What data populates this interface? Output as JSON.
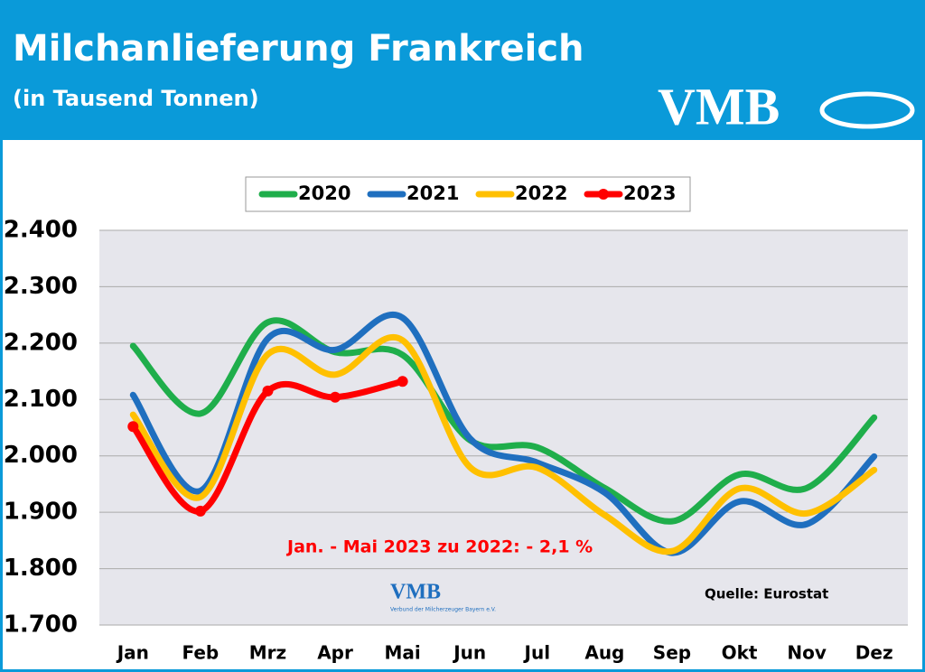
{
  "header": {
    "title": "Milchanlieferung Frankreich",
    "subtitle": "(in Tausend Tonnen)",
    "logo": "VMB"
  },
  "chart_data": {
    "type": "line",
    "categories": [
      "Jan",
      "Feb",
      "Mrz",
      "Apr",
      "Mai",
      "Jun",
      "Jul",
      "Aug",
      "Sep",
      "Okt",
      "Nov",
      "Dez"
    ],
    "series": [
      {
        "name": "2020",
        "color": "#1fae4b",
        "values": [
          2195,
          2075,
          2237,
          2184,
          2179,
          2028,
          2015,
          1943,
          1884,
          1967,
          1943,
          2068
        ]
      },
      {
        "name": "2021",
        "color": "#1f6fbf",
        "values": [
          2108,
          1938,
          2208,
          2188,
          2245,
          2031,
          1988,
          1935,
          1828,
          1919,
          1879,
          1999
        ]
      },
      {
        "name": "2022",
        "color": "#ffc000",
        "values": [
          2073,
          1927,
          2180,
          2144,
          2205,
          1980,
          1979,
          1895,
          1831,
          1942,
          1898,
          1975
        ]
      },
      {
        "name": "2023",
        "color": "#ff0000",
        "markers": true,
        "values": [
          2052,
          1902,
          2115,
          2104,
          2132,
          null,
          null,
          null,
          null,
          null,
          null,
          null
        ]
      }
    ],
    "ylim": [
      1700,
      2400
    ],
    "yticks": [
      {
        "value": 1700,
        "label": "1.700"
      },
      {
        "value": 1800,
        "label": "1.800"
      },
      {
        "value": 1900,
        "label": "1.900"
      },
      {
        "value": 2000,
        "label": "2.000"
      },
      {
        "value": 2100,
        "label": "2.100"
      },
      {
        "value": 2200,
        "label": "2.200"
      },
      {
        "value": 2300,
        "label": "2.300"
      },
      {
        "value": 2400,
        "label": "2.400"
      }
    ],
    "grid": true,
    "annotation": "Jan. - Mai 2023 zu 2022:  - 2,1 %",
    "source": "Quelle: Eurostat",
    "watermark": {
      "logo": "VMB",
      "text": "Verbund der Milcherzeuger Bayern e.V."
    }
  }
}
